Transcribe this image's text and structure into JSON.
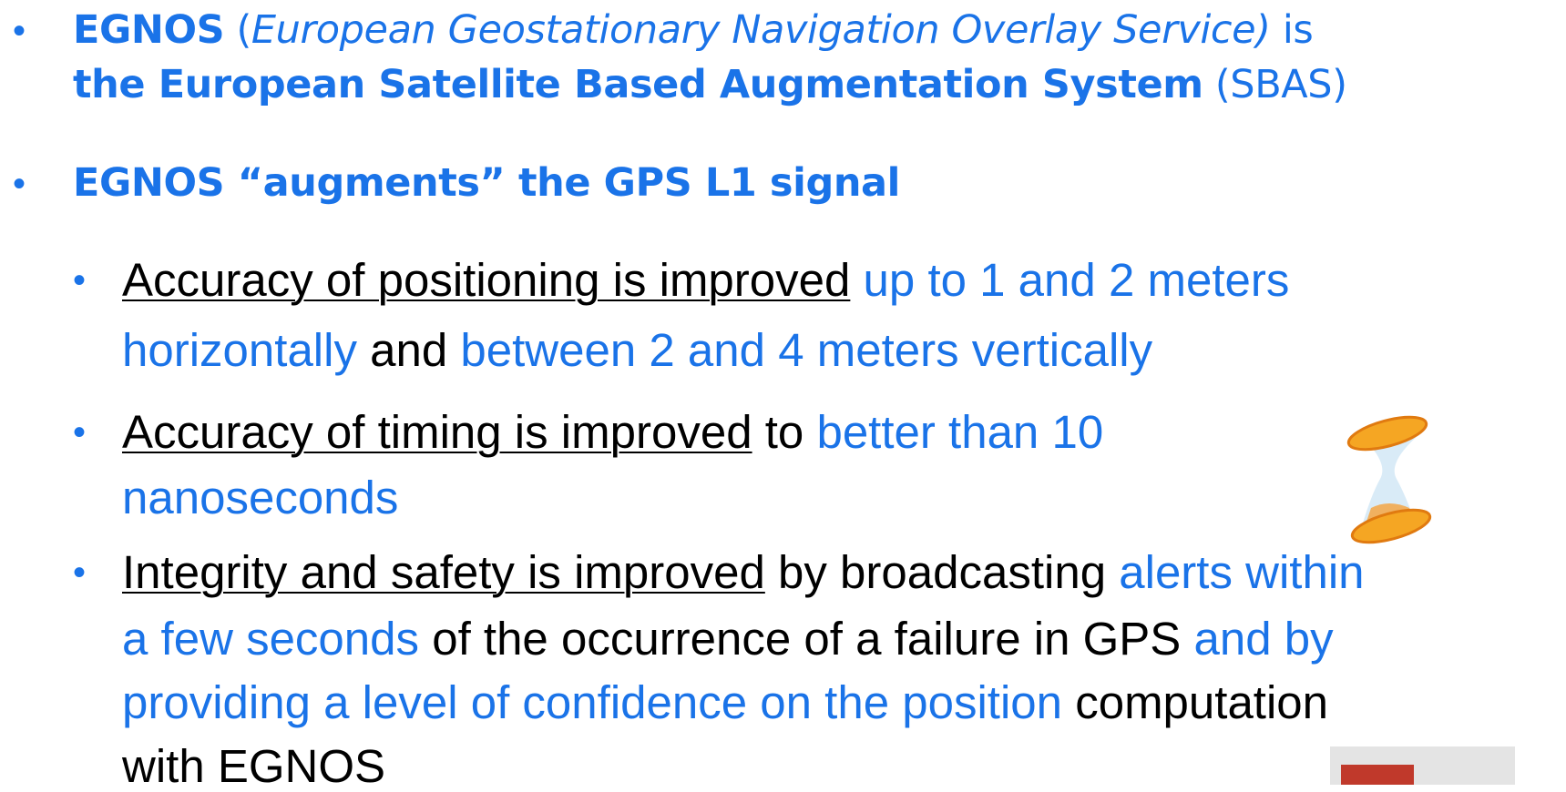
{
  "bullets": [
    {
      "lines": [
        [
          "EGNOS",
          " (",
          "European Geostationary Navigation Overlay Service)",
          " is"
        ],
        [
          "the European Satellite Based Augmentation System",
          " (SBAS)"
        ]
      ]
    },
    {
      "lines": [
        [
          "EGNOS “augments” the GPS L1 signal"
        ]
      ]
    },
    {
      "lines": [
        [
          "Accuracy of positioning is improved",
          " up to 1 and 2 meters"
        ],
        [
          "horizontally",
          " and ",
          "between 2 and 4 meters vertically"
        ]
      ]
    },
    {
      "lines": [
        [
          "Accuracy of timing is improved",
          " to ",
          "better than 10"
        ],
        [
          "nanoseconds"
        ]
      ]
    },
    {
      "lines": [
        [
          "Integrity and safety is improved",
          " by broadcasting ",
          "alerts within"
        ],
        [
          "a few seconds",
          " of the occurrence of a failure in GPS ",
          "and by"
        ],
        [
          "providing a level of confidence on the position",
          " computation"
        ],
        [
          "with EGNOS"
        ]
      ]
    }
  ]
}
